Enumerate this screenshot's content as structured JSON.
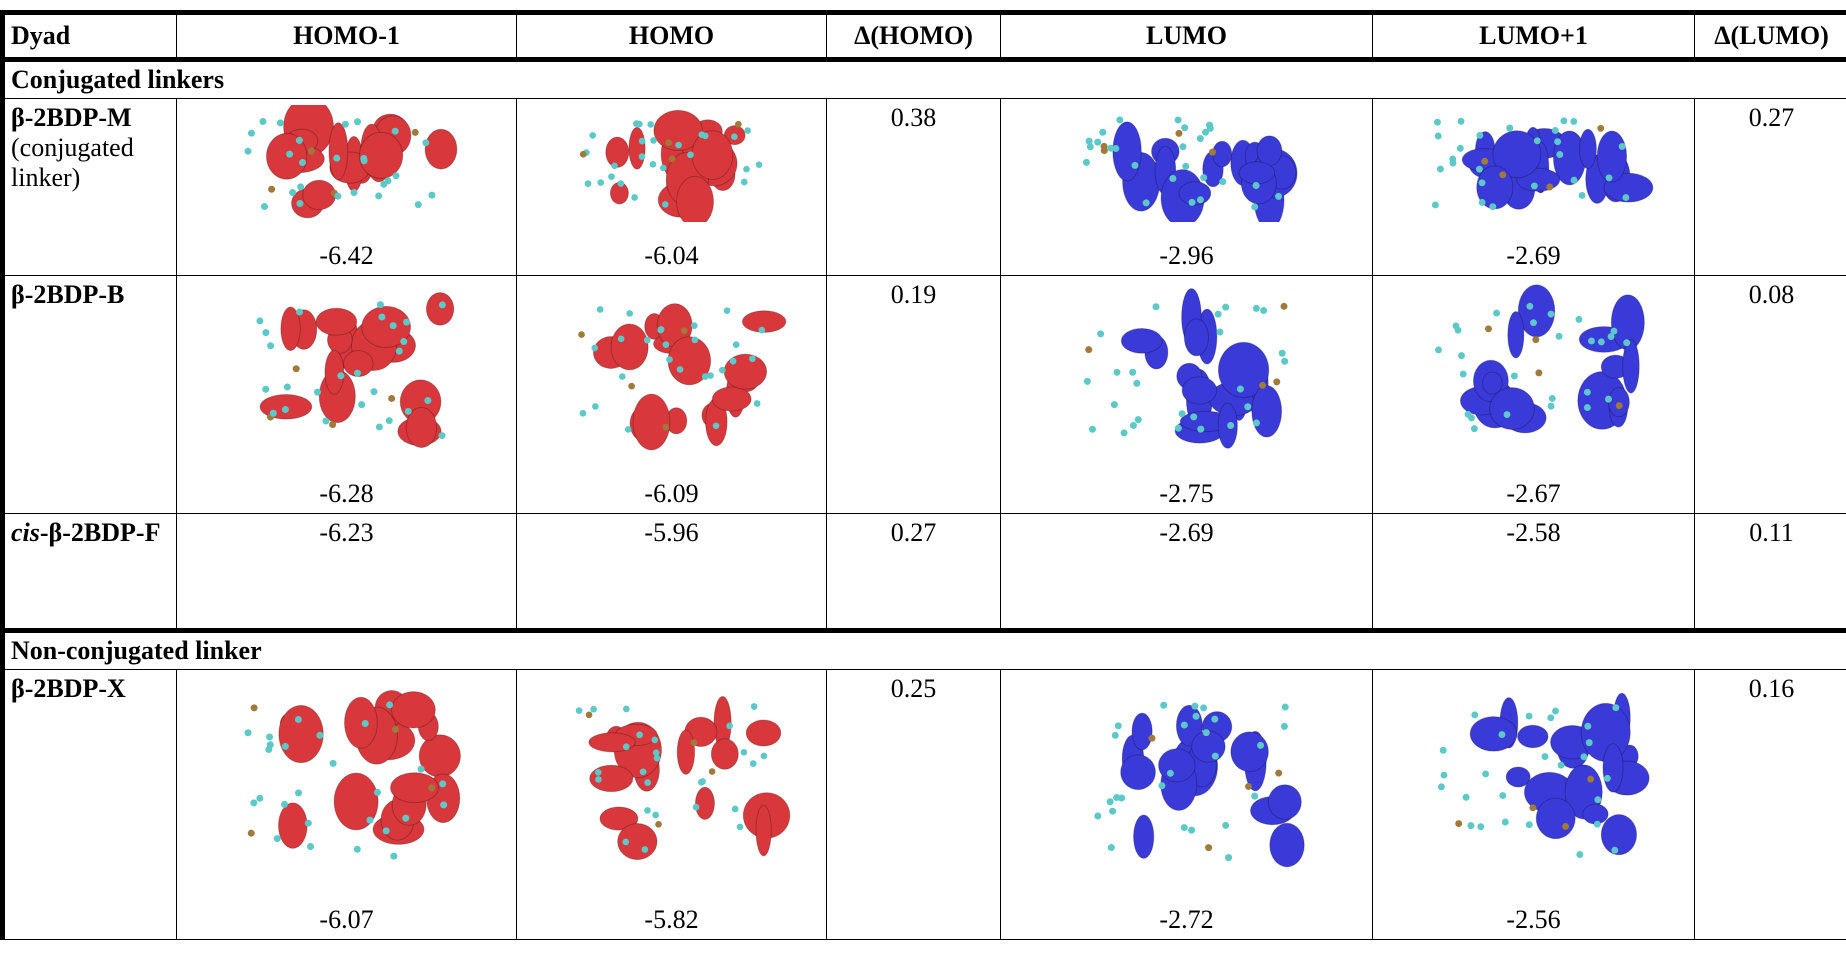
{
  "table": {
    "header": [
      "Dyad",
      "HOMO-1",
      "HOMO",
      "Δ(HOMO)",
      "LUMO",
      "LUMO+1",
      "Δ(LUMO)"
    ],
    "sections": [
      {
        "title": "Conjugated linkers",
        "rows": [
          {
            "dyad": {
              "name": "β-2BDP-M",
              "note": "(conjugated linker)"
            },
            "values": [
              -6.42,
              -6.04,
              0.38,
              -2.96,
              -2.69,
              0.27
            ]
          },
          {
            "dyad": {
              "name": "β-2BDP-B"
            },
            "values": [
              -6.28,
              -6.09,
              0.19,
              -2.75,
              -2.67,
              0.08
            ]
          },
          {
            "dyad": {
              "italic": "cis",
              "name": "-β-2BDP-F"
            },
            "values": [
              -6.23,
              -5.96,
              0.27,
              -2.69,
              -2.58,
              0.11
            ]
          }
        ]
      },
      {
        "title": "Non-conjugated linker",
        "rows": [
          {
            "dyad": {
              "name": "β-2BDP-X"
            },
            "values": [
              -6.07,
              -5.82,
              0.25,
              -2.72,
              -2.56,
              0.16
            ]
          }
        ]
      }
    ]
  }
}
